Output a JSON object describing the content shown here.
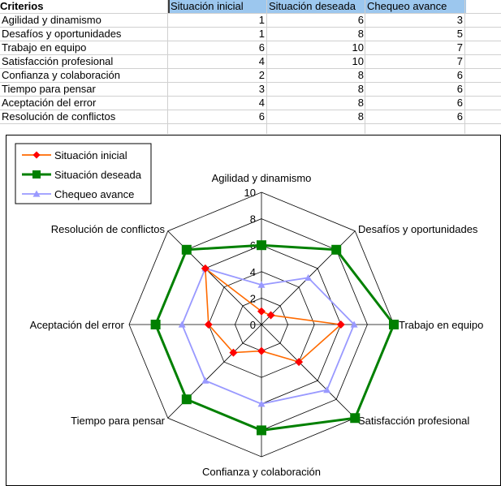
{
  "table": {
    "headers": [
      "Criterios",
      "Situación inicial",
      "Situación deseada",
      "Chequeo avance"
    ],
    "rows": [
      {
        "label": "Agilidad y dinamismo",
        "values": [
          "1",
          "6",
          "3"
        ]
      },
      {
        "label": "Desafíos y oportunidades",
        "values": [
          "1",
          "8",
          "5"
        ]
      },
      {
        "label": "Trabajo en equipo",
        "values": [
          "6",
          "10",
          "7"
        ]
      },
      {
        "label": "Satisfacción profesional",
        "values": [
          "4",
          "10",
          "7"
        ]
      },
      {
        "label": "Confianza y colaboración",
        "values": [
          "2",
          "8",
          "6"
        ]
      },
      {
        "label": "Tiempo para pensar",
        "values": [
          "3",
          "8",
          "6"
        ]
      },
      {
        "label": "Aceptación del error",
        "values": [
          "4",
          "8",
          "6"
        ]
      },
      {
        "label": "Resolución de conflictos",
        "values": [
          "6",
          "8",
          "6"
        ]
      }
    ]
  },
  "chart_data": {
    "type": "radar",
    "categories": [
      "Agilidad y dinamismo",
      "Desafíos y oportunidades",
      "Trabajo en equipo",
      "Satisfacción profesional",
      "Confianza y colaboración",
      "Tiempo para pensar",
      "Aceptación del error",
      "Resolución de conflictos"
    ],
    "series": [
      {
        "name": "Situación inicial",
        "values": [
          1,
          1,
          6,
          4,
          2,
          3,
          4,
          6
        ],
        "color": "#ff6a00",
        "marker": "diamond",
        "marker_color": "#ff0000"
      },
      {
        "name": "Situación deseada",
        "values": [
          6,
          8,
          10,
          10,
          8,
          8,
          8,
          8
        ],
        "color": "#008000",
        "marker": "square",
        "marker_color": "#008000"
      },
      {
        "name": "Chequeo avance",
        "values": [
          3,
          5,
          7,
          7,
          6,
          6,
          6,
          6
        ],
        "color": "#9999ff",
        "marker": "triangle",
        "marker_color": "#9999ff"
      }
    ],
    "rmin": 0,
    "rmax": 10,
    "ticks": [
      "0",
      "2",
      "4",
      "6",
      "8",
      "10"
    ],
    "grid": true,
    "legend": "top-left"
  }
}
